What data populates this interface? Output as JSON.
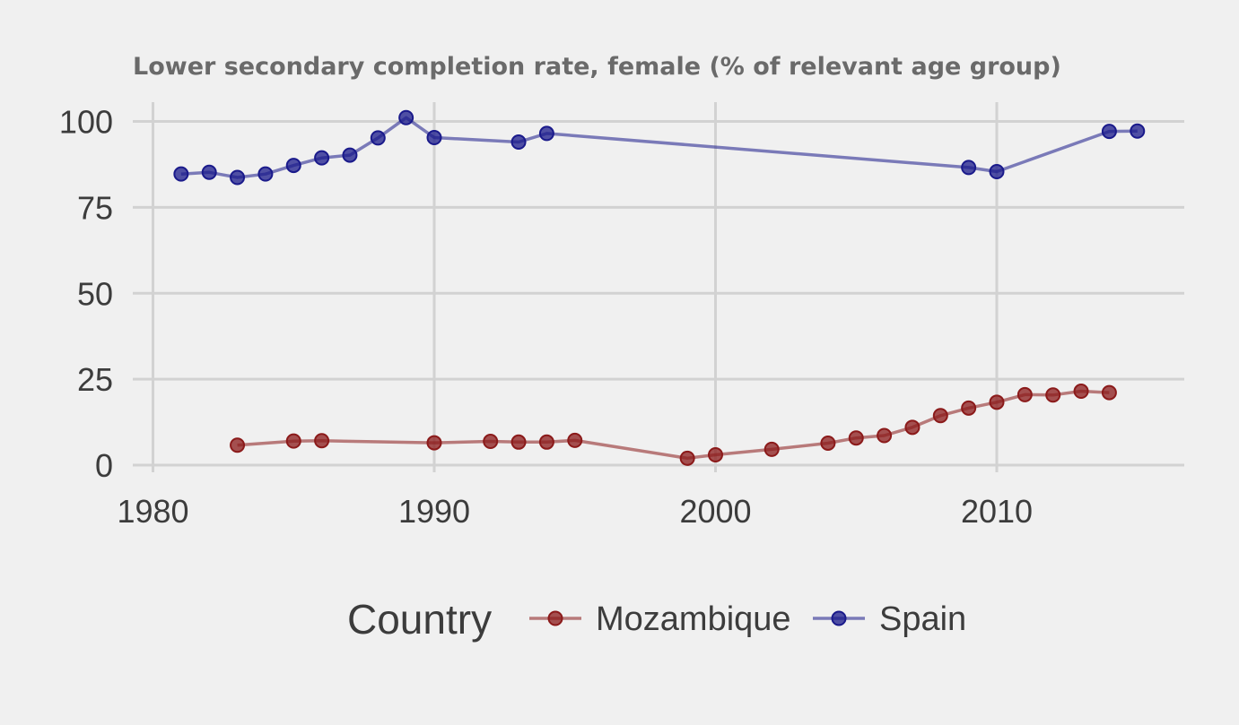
{
  "chart_data": {
    "type": "line",
    "title": "Lower secondary completion rate, female (% of relevant age group)",
    "xlabel": "",
    "ylabel": "",
    "xlim": [
      1980,
      2016.5
    ],
    "ylim": [
      0,
      100
    ],
    "x_ticks": [
      1980,
      1990,
      2000,
      2010
    ],
    "y_ticks": [
      0,
      25,
      50,
      75,
      100
    ],
    "grid": true,
    "legend": {
      "title": "Country",
      "position": "bottom"
    },
    "series": [
      {
        "name": "Mozambique",
        "color": "#8b1a1a",
        "x": [
          1983,
          1985,
          1986,
          1990,
          1992,
          1993,
          1994,
          1995,
          1999,
          2000,
          2002,
          2004,
          2005,
          2006,
          2007,
          2008,
          2009,
          2010,
          2011,
          2012,
          2013,
          2014
        ],
        "y": [
          5.8,
          7.0,
          7.1,
          6.5,
          6.9,
          6.7,
          6.7,
          7.2,
          2.0,
          3.0,
          4.6,
          6.4,
          7.9,
          8.6,
          11.0,
          14.4,
          16.6,
          18.3,
          20.5,
          20.4,
          21.5,
          21.1
        ]
      },
      {
        "name": "Spain",
        "color": "#1a1a8b",
        "x": [
          1981,
          1982,
          1983,
          1984,
          1985,
          1986,
          1987,
          1988,
          1989,
          1990,
          1993,
          1994,
          2009,
          2010,
          2014,
          2015
        ],
        "y": [
          84.7,
          85.2,
          83.7,
          84.7,
          87.2,
          89.4,
          90.2,
          95.2,
          101.1,
          95.3,
          94.0,
          96.5,
          86.6,
          85.4,
          97.1,
          97.2
        ]
      }
    ]
  }
}
